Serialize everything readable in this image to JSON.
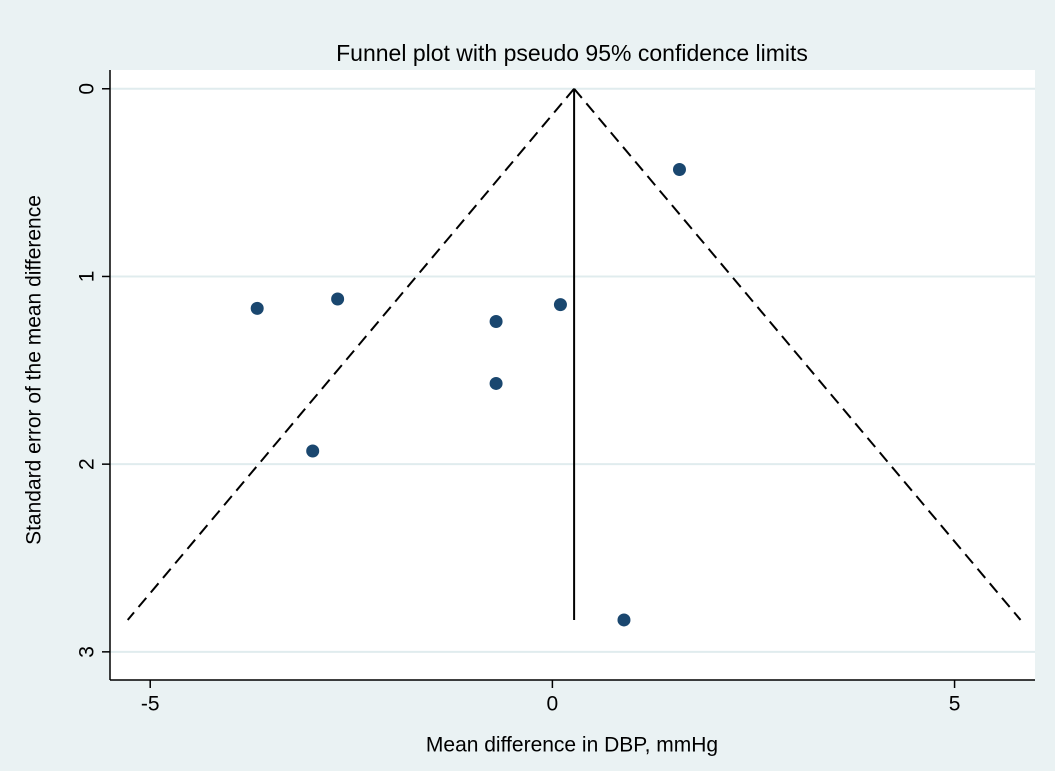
{
  "chart_data": {
    "type": "scatter",
    "title": "Funnel plot with pseudo 95% confidence limits",
    "x_label": "Mean difference in DBP, mmHg",
    "y_label": "Standard error of the mean difference",
    "x": [
      -3.67,
      -2.67,
      -0.7,
      0.1,
      1.58,
      -0.7,
      -2.98,
      0.89
    ],
    "values": [
      1.17,
      1.12,
      1.24,
      1.15,
      0.43,
      1.57,
      1.93,
      2.83
    ],
    "color": "#1a476f",
    "funnel": {
      "center": 0.27,
      "se_max": 2.83,
      "left_limit": -5.28,
      "right_limit": 5.82
    },
    "xlim": [
      -5.5,
      6
    ],
    "xticks": [
      -5,
      0,
      5
    ],
    "ylim": [
      -0.1,
      3.15
    ],
    "yticks": [
      0,
      1,
      2,
      3
    ],
    "y_inverted": true,
    "grid": true
  }
}
